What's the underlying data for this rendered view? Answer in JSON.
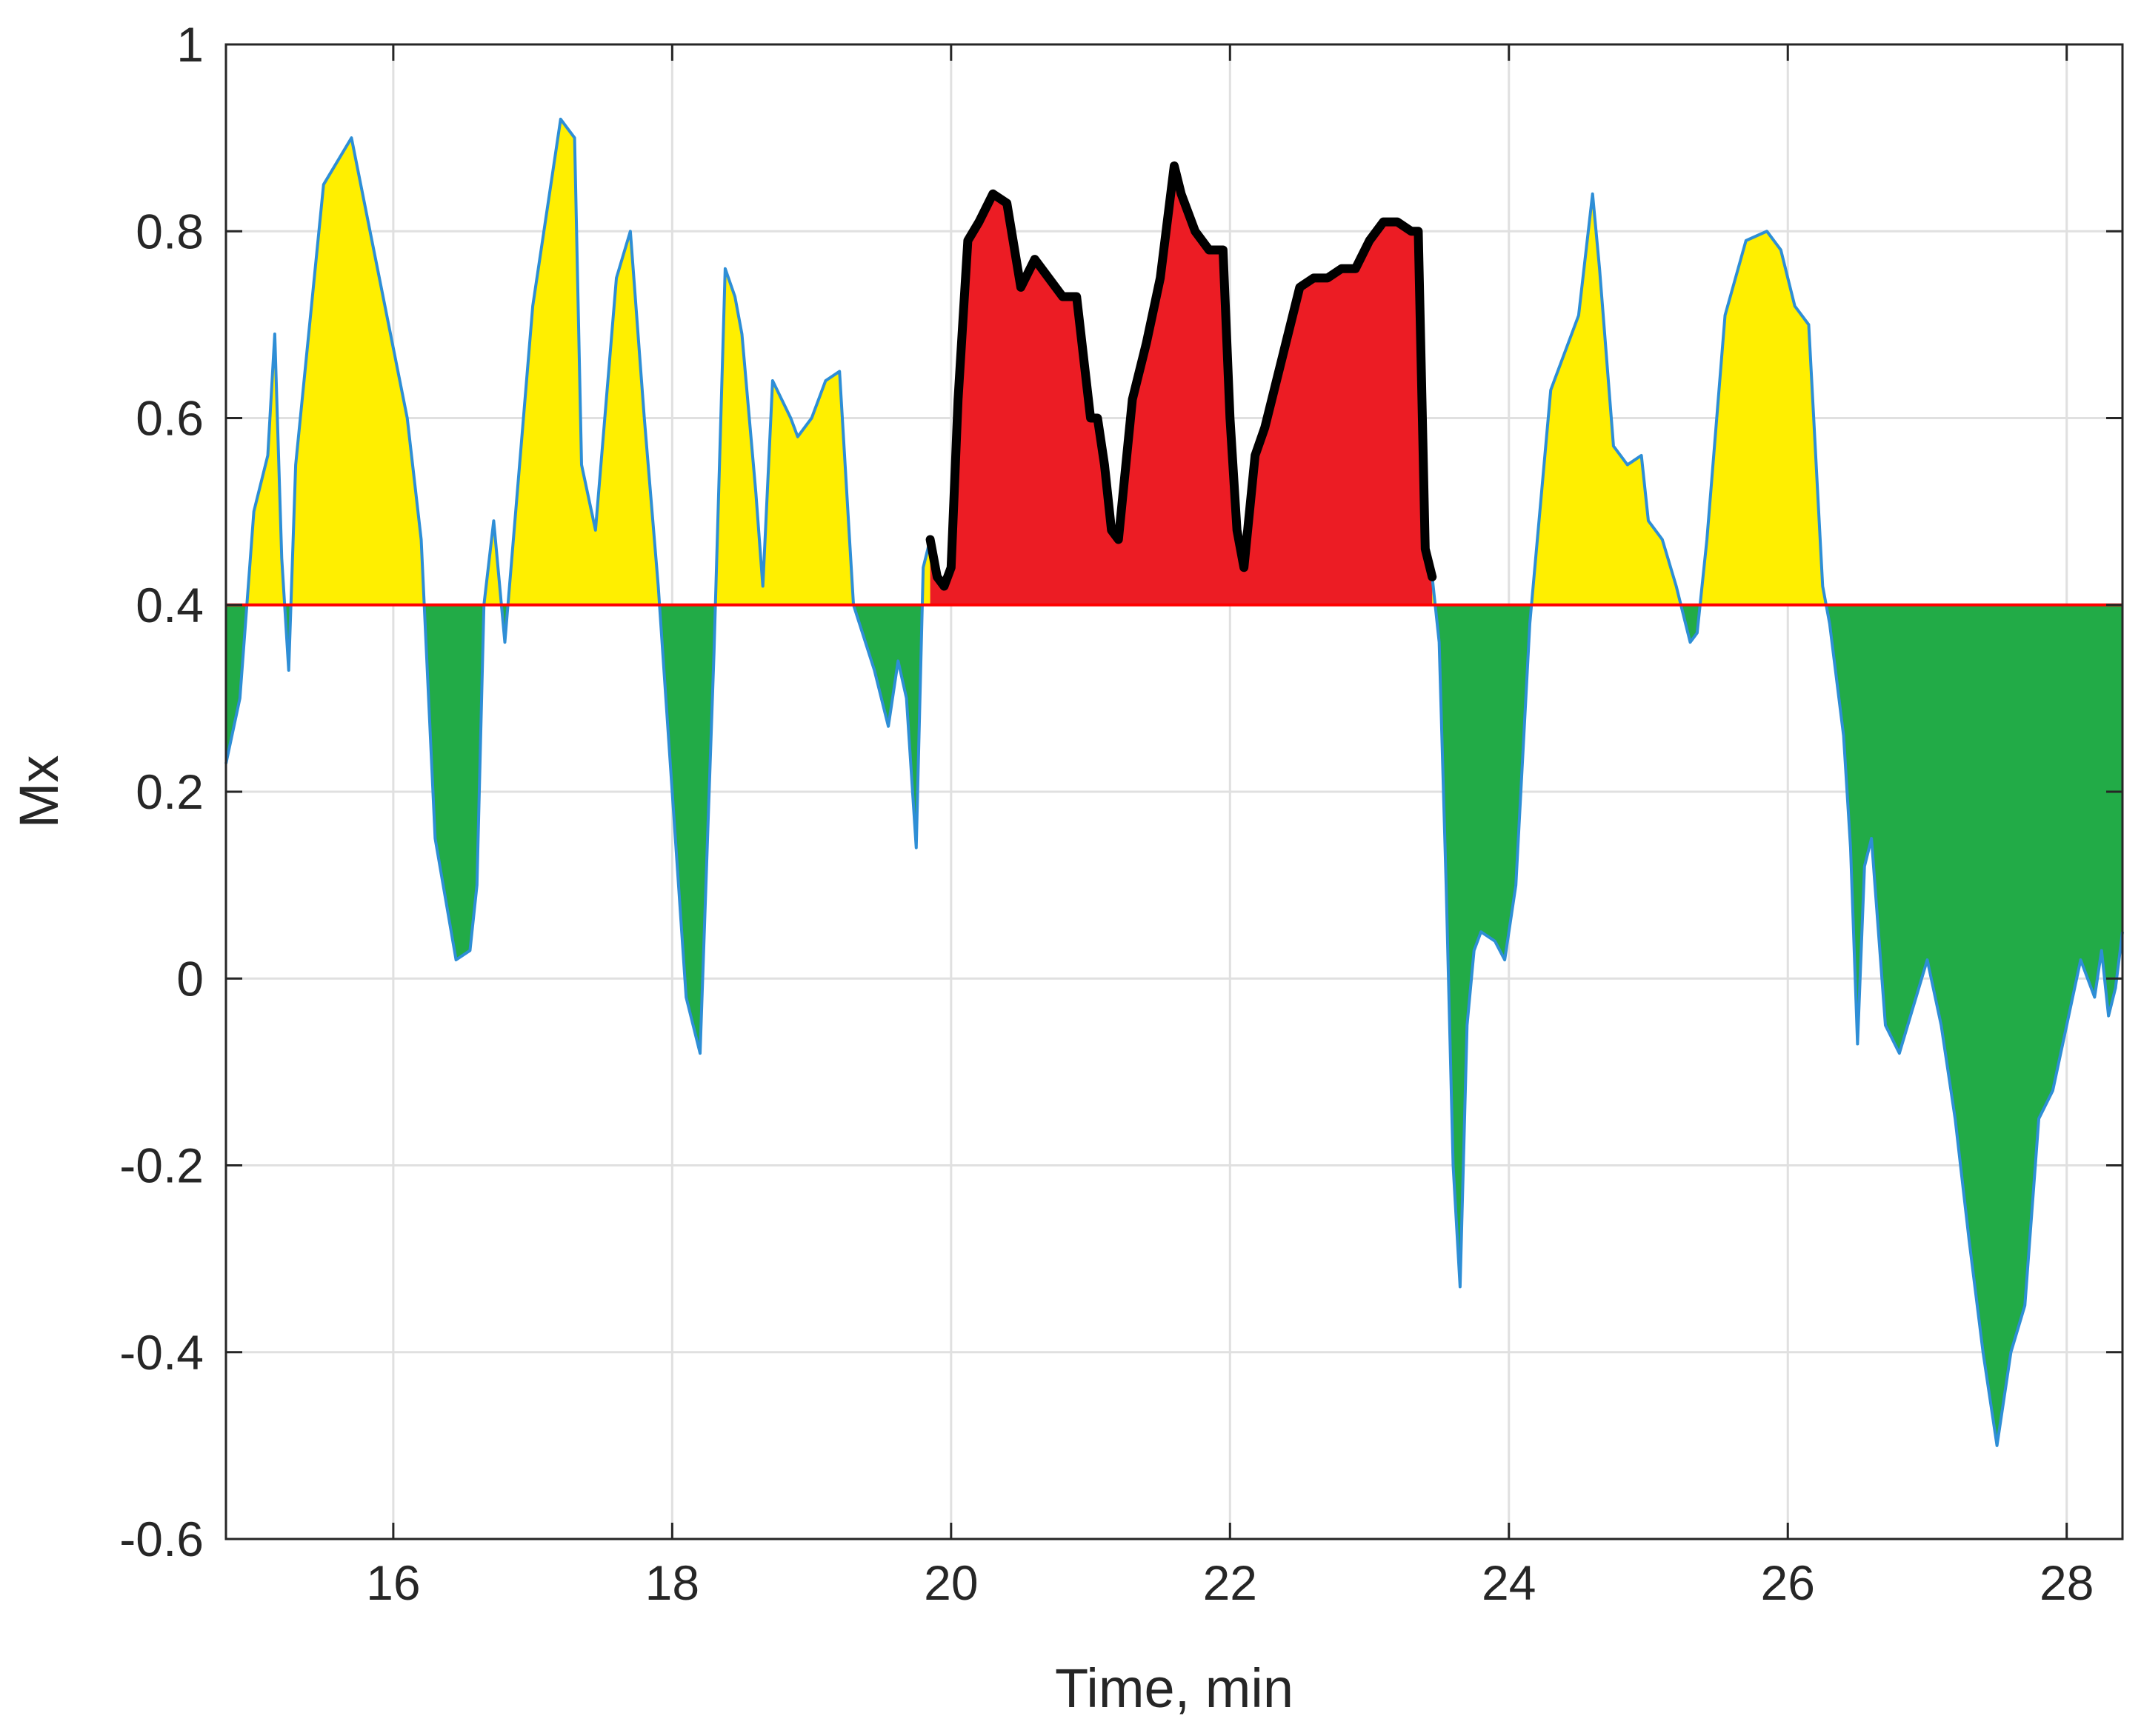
{
  "chart_data": {
    "type": "area",
    "title": "",
    "xlabel": "Time, min",
    "ylabel": "Mx",
    "xlim": [
      14.8,
      28.4
    ],
    "ylim": [
      -0.6,
      1.0
    ],
    "x_ticks": [
      16,
      18,
      20,
      22,
      24,
      26,
      28
    ],
    "x_tick_labels": [
      "16",
      "18",
      "20",
      "22",
      "24",
      "26",
      "28"
    ],
    "y_ticks": [
      -0.6,
      -0.4,
      -0.2,
      0,
      0.2,
      0.4,
      0.6,
      0.8,
      1.0
    ],
    "y_tick_labels": [
      "-0.6",
      "-0.4",
      "-0.2",
      "0",
      "0.2",
      "0.4",
      "0.6",
      "0.8",
      "1"
    ],
    "grid": true,
    "threshold": 0.4,
    "colors": {
      "above_threshold": "#ffef00",
      "below_threshold": "#22ab47",
      "highlight_region": "#ec1c24",
      "series_line": "#2e8ed6",
      "threshold_line": "#ff0000",
      "highlight_line": "#000000",
      "grid": "#e0e0e0",
      "axes": "#262626"
    },
    "highlight_range": [
      19.85,
      23.45
    ],
    "series": [
      {
        "x": [
          14.8,
          14.9,
          15.0,
          15.1,
          15.15,
          15.2,
          15.25,
          15.3,
          15.5,
          15.7,
          15.9,
          16.1,
          16.2,
          16.3,
          16.45,
          16.55,
          16.6,
          16.65,
          16.72,
          16.8,
          17.0,
          17.2,
          17.3,
          17.35,
          17.45,
          17.6,
          17.7,
          17.8,
          17.9,
          18.0,
          18.1,
          18.2,
          18.3,
          18.38,
          18.45,
          18.5,
          18.6,
          18.65,
          18.72,
          18.85,
          18.9,
          19.0,
          19.1,
          19.2,
          19.3,
          19.45,
          19.55,
          19.62,
          19.68,
          19.75,
          19.8,
          19.85,
          19.9,
          19.95,
          20.0,
          20.05,
          20.12,
          20.2,
          20.3,
          20.4,
          20.5,
          20.6,
          20.7,
          20.8,
          20.9,
          21.0,
          21.05,
          21.1,
          21.15,
          21.2,
          21.3,
          21.4,
          21.5,
          21.6,
          21.65,
          21.75,
          21.85,
          21.95,
          22.0,
          22.05,
          22.1,
          22.18,
          22.25,
          22.4,
          22.5,
          22.6,
          22.7,
          22.8,
          22.9,
          23.0,
          23.1,
          23.2,
          23.3,
          23.35,
          23.4,
          23.45,
          23.5,
          23.55,
          23.6,
          23.65,
          23.7,
          23.75,
          23.8,
          23.9,
          23.97,
          24.05,
          24.15,
          24.3,
          24.5,
          24.6,
          24.65,
          24.75,
          24.85,
          24.95,
          25.0,
          25.1,
          25.2,
          25.3,
          25.35,
          25.42,
          25.55,
          25.7,
          25.85,
          25.95,
          26.05,
          26.15,
          26.25,
          26.3,
          26.4,
          26.45,
          26.5,
          26.55,
          26.6,
          26.7,
          26.8,
          27.0,
          27.1,
          27.2,
          27.3,
          27.4,
          27.5,
          27.6,
          27.7,
          27.8,
          27.9,
          28.0,
          28.1,
          28.2,
          28.25,
          28.3,
          28.35,
          28.4
        ],
        "values": [
          0.23,
          0.3,
          0.5,
          0.56,
          0.69,
          0.45,
          0.33,
          0.55,
          0.85,
          0.9,
          0.75,
          0.6,
          0.47,
          0.15,
          0.02,
          0.03,
          0.1,
          0.4,
          0.49,
          0.36,
          0.72,
          0.92,
          0.9,
          0.55,
          0.48,
          0.75,
          0.8,
          0.6,
          0.42,
          0.2,
          -0.02,
          -0.08,
          0.35,
          0.76,
          0.73,
          0.69,
          0.52,
          0.42,
          0.64,
          0.6,
          0.58,
          0.6,
          0.64,
          0.65,
          0.4,
          0.33,
          0.27,
          0.34,
          0.3,
          0.14,
          0.44,
          0.47,
          0.43,
          0.42,
          0.44,
          0.62,
          0.79,
          0.81,
          0.84,
          0.83,
          0.74,
          0.77,
          0.75,
          0.73,
          0.73,
          0.6,
          0.6,
          0.55,
          0.48,
          0.47,
          0.62,
          0.68,
          0.75,
          0.87,
          0.84,
          0.8,
          0.78,
          0.78,
          0.6,
          0.48,
          0.44,
          0.56,
          0.59,
          0.68,
          0.74,
          0.75,
          0.75,
          0.76,
          0.76,
          0.79,
          0.81,
          0.81,
          0.8,
          0.8,
          0.46,
          0.43,
          0.36,
          0.1,
          -0.2,
          -0.33,
          -0.05,
          0.03,
          0.05,
          0.04,
          0.02,
          0.1,
          0.38,
          0.63,
          0.71,
          0.84,
          0.76,
          0.57,
          0.55,
          0.56,
          0.49,
          0.47,
          0.42,
          0.36,
          0.37,
          0.47,
          0.71,
          0.79,
          0.8,
          0.78,
          0.72,
          0.7,
          0.42,
          0.38,
          0.26,
          0.14,
          -0.07,
          0.12,
          0.15,
          -0.05,
          -0.08,
          0.02,
          -0.05,
          -0.15,
          -0.28,
          -0.4,
          -0.5,
          -0.4,
          -0.35,
          -0.15,
          -0.12,
          -0.05,
          0.02,
          -0.02,
          0.03,
          -0.04,
          -0.01,
          0.05
        ]
      }
    ]
  }
}
